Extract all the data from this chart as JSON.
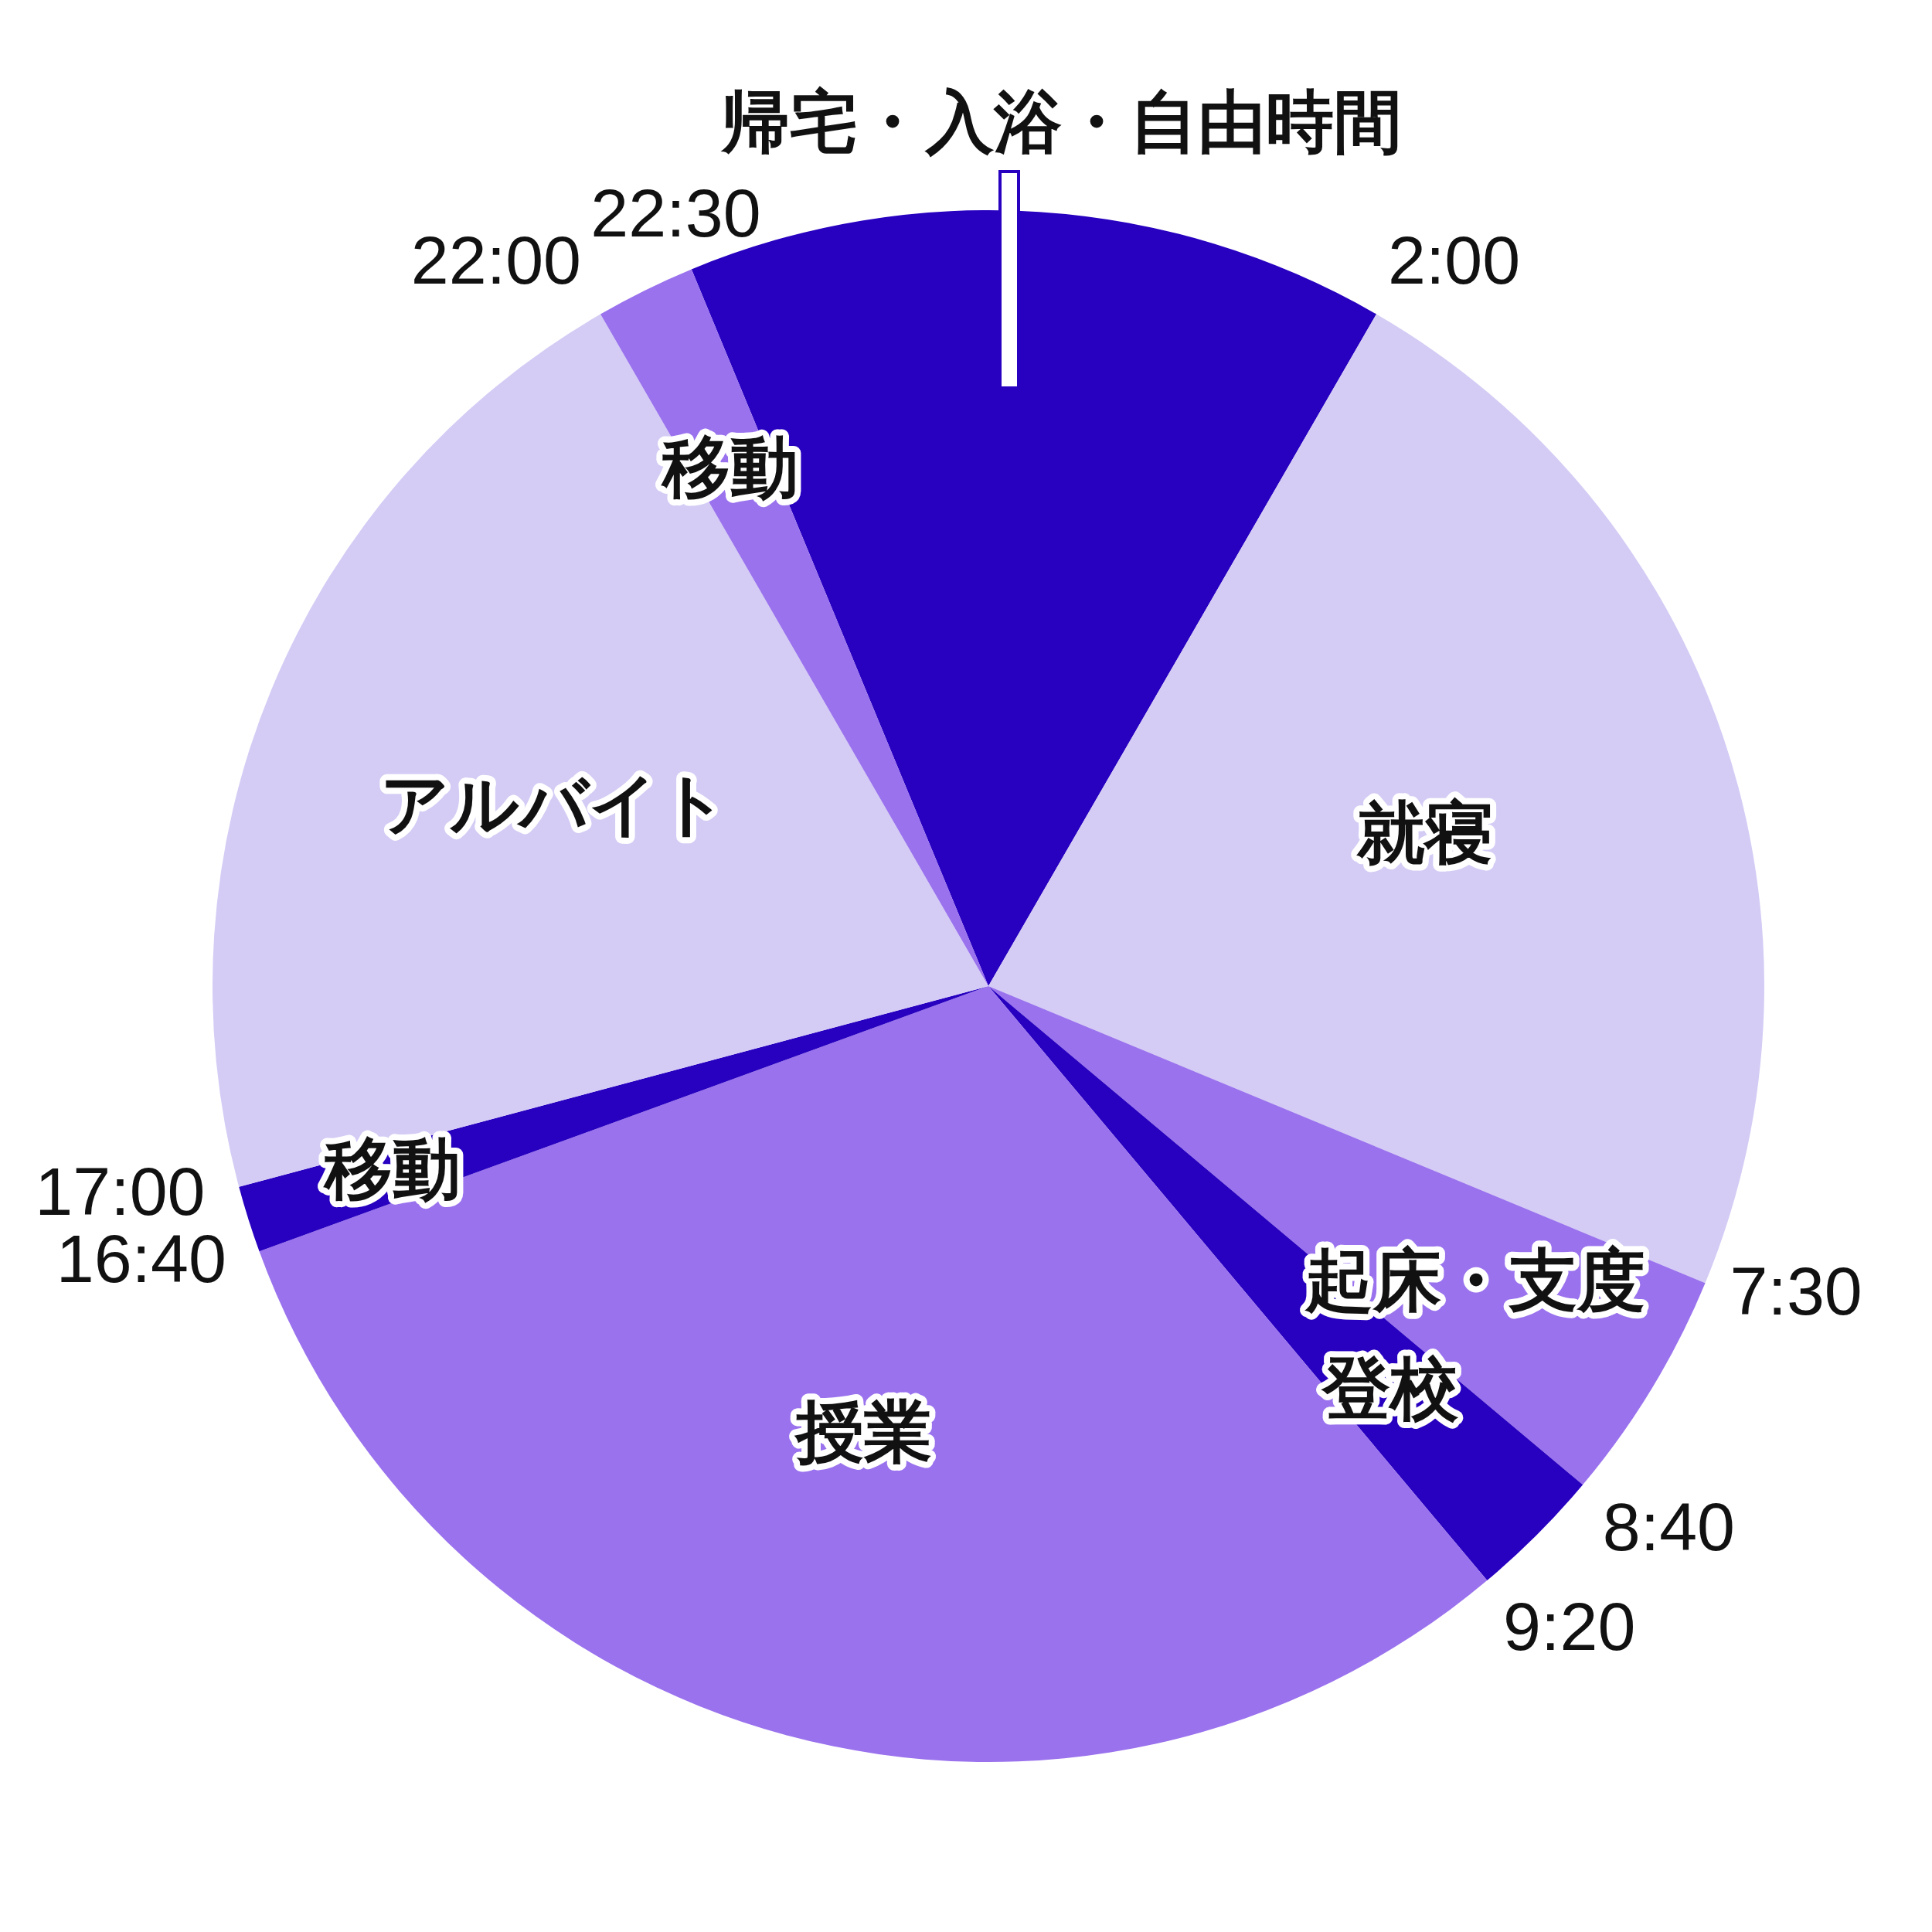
{
  "chart_data": {
    "type": "pie",
    "categories": [
      "帰宅・入浴・自由時間",
      "就寝",
      "起床・支度",
      "登校",
      "授業",
      "移動",
      "アルバイト",
      "移動"
    ],
    "values": [
      14.583,
      22.917,
      4.861,
      2.778,
      30.556,
      1.389,
      20.833,
      2.083
    ],
    "colors": [
      "#2800c0",
      "#d4ccf5",
      "#9a72ee",
      "#2800c0",
      "#9a72ee",
      "#2800c0",
      "#d4ccf5",
      "#9a72ee"
    ],
    "annotations": [
      "22:30",
      "2:00",
      "7:30",
      "8:40",
      "9:20",
      "16:40",
      "17:00",
      "22:00"
    ]
  }
}
